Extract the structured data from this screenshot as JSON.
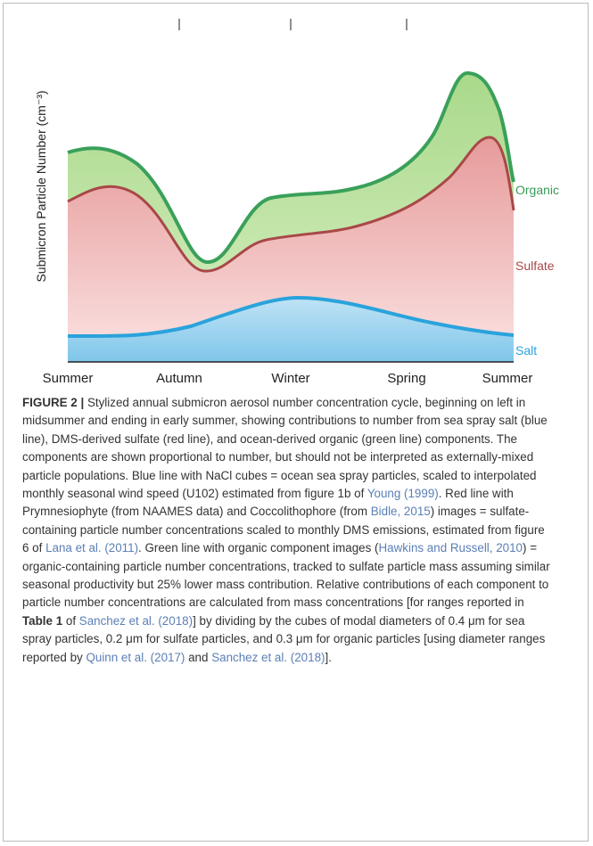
{
  "figure": {
    "y_label": "Submicron Particle Number (cm⁻³)",
    "x_labels": [
      "Summer",
      "Autumn",
      "Winter",
      "Spring",
      "Summer"
    ],
    "series_labels": [
      "Organic",
      "Sulfate",
      "Salt"
    ]
  },
  "caption": {
    "label": "FIGURE 2 |",
    "parts": [
      " Stylized annual submicron aerosol number concentration cycle, beginning on left in midsummer and ending in early summer, showing contributions to number from sea spray salt (blue line), DMS-derived sulfate (red line), and ocean-derived organic (green line) components. The components are shown proportional to number, but should not be interpreted as externally-mixed particle populations. Blue line with NaCl cubes = ocean sea spray particles, scaled to interpolated monthly seasonal wind speed (U102) estimated from figure 1b of ",
      "Young (1999)",
      ". Red line with Prymnesiophyte (from NAAMES data) and Coccolithophore (from ",
      "Bidle, 2015",
      ") images = sulfate-containing particle number concentrations scaled to monthly DMS emissions, estimated from figure 6 of ",
      "Lana et al. (2011)",
      ". Green line with organic component images (",
      "Hawkins and Russell, 2010",
      ") = organic-containing particle number concentrations, tracked to sulfate particle mass assuming similar seasonal productivity but 25% lower mass contribution. Relative contributions of each component to particle number concentrations are calculated from mass concentrations [for ranges reported in ",
      "Table 1",
      " of ",
      "Sanchez et al. (2018)",
      "] by dividing by the cubes of modal diameters of 0.4 μm for sea spray particles, 0.2 μm for sulfate particles, and 0.3 μm for organic particles [using diameter ranges reported by ",
      "Quinn et al. (2017)",
      " and ",
      "Sanchez et al. (2018)",
      "]."
    ]
  }
}
